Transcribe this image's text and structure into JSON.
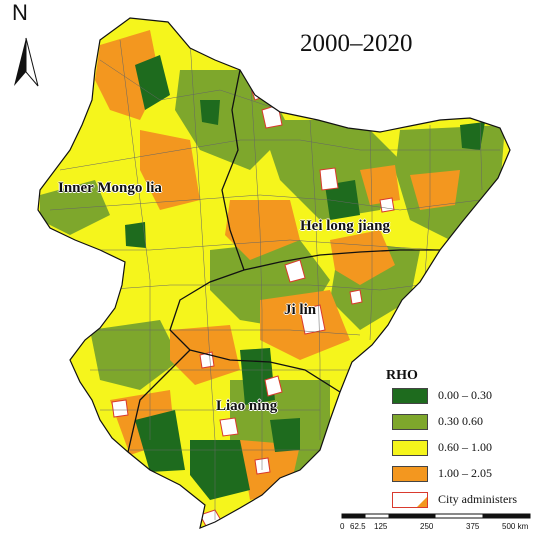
{
  "title": "2000–2020",
  "north_arrow": {
    "letter": "N"
  },
  "regions": {
    "inner_mongolia": "Inner Mongo lia",
    "heilongjiang": "Hei long jiang",
    "jilin": "Ji lin",
    "liaoning": "Liao ning"
  },
  "legend": {
    "title": "RHO",
    "items": [
      {
        "label": "0.00 – 0.30",
        "color": "#1e6b1e"
      },
      {
        "label": "0.30   0.60",
        "color": "#7ea72c"
      },
      {
        "label": "0.60 – 1.00",
        "color": "#f5f51c"
      },
      {
        "label": "1.00 – 2.05",
        "color": "#f3971f"
      },
      {
        "label": "City administers",
        "color": "#ffffff",
        "border": "#d93a2e"
      }
    ]
  },
  "scale": {
    "ticks": [
      "0",
      "62.5",
      "125",
      "250",
      "375",
      "500 km"
    ]
  },
  "colors": {
    "boundary": "#555555",
    "province_boundary": "#111111"
  }
}
